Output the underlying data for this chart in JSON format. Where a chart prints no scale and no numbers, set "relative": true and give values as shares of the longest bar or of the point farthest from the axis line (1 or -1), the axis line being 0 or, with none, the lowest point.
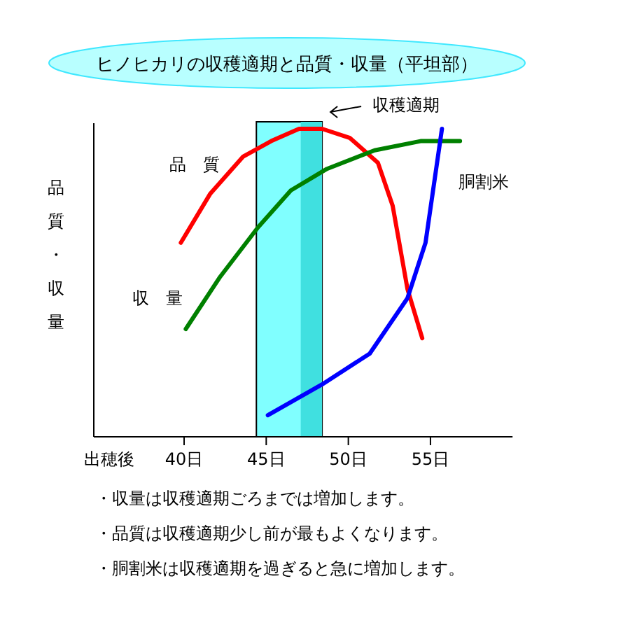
{
  "chart_data": {
    "type": "line",
    "relative": true,
    "title": "ヒノヒカリの収穫適期と品質・収量（平坦部）",
    "ylabel": "品質・収量",
    "xlabel": "出穂後",
    "xlim": [
      34.5,
      60
    ],
    "xticks": [
      {
        "value": 40,
        "label": "40日"
      },
      {
        "value": 45,
        "label": "45日"
      },
      {
        "value": 50,
        "label": "50日"
      },
      {
        "value": 55,
        "label": "55日"
      }
    ],
    "series": [
      {
        "name": "品　質",
        "color": "#ff0000",
        "x": [
          39.8,
          41.6,
          43.6,
          45.3,
          47.0,
          48.4,
          50.1,
          51.8,
          52.7,
          53.6,
          54.5
        ],
        "values": [
          0.63,
          0.79,
          0.91,
          0.96,
          1.0,
          1.0,
          0.97,
          0.89,
          0.75,
          0.48,
          0.32
        ]
      },
      {
        "name": "収　量",
        "color": "#008000",
        "x": [
          40.1,
          42.2,
          44.5,
          46.5,
          48.7,
          51.6,
          54.4,
          56.8
        ],
        "values": [
          0.35,
          0.52,
          0.68,
          0.8,
          0.87,
          0.93,
          0.96,
          0.96
        ]
      },
      {
        "name": "胴割米",
        "color": "#0000ff",
        "x": [
          45.1,
          48.4,
          51.3,
          53.6,
          54.7,
          55.7
        ],
        "values": [
          0.07,
          0.17,
          0.27,
          0.45,
          0.63,
          1.0
        ]
      }
    ],
    "bands": [
      {
        "axis": "x",
        "from": 44.4,
        "to": 48.4,
        "label": "収穫適期",
        "color": "#80ffff"
      },
      {
        "axis": "x",
        "from": 47.1,
        "to": 48.4,
        "color": "#40e0e0"
      }
    ],
    "annotations": [
      "・収量は収穫適期ごろまでは増加します。",
      "・品質は収穫適期少し前が最もよくなります。",
      "・胴割米は収穫適期を過ぎると急に増加します。"
    ]
  }
}
